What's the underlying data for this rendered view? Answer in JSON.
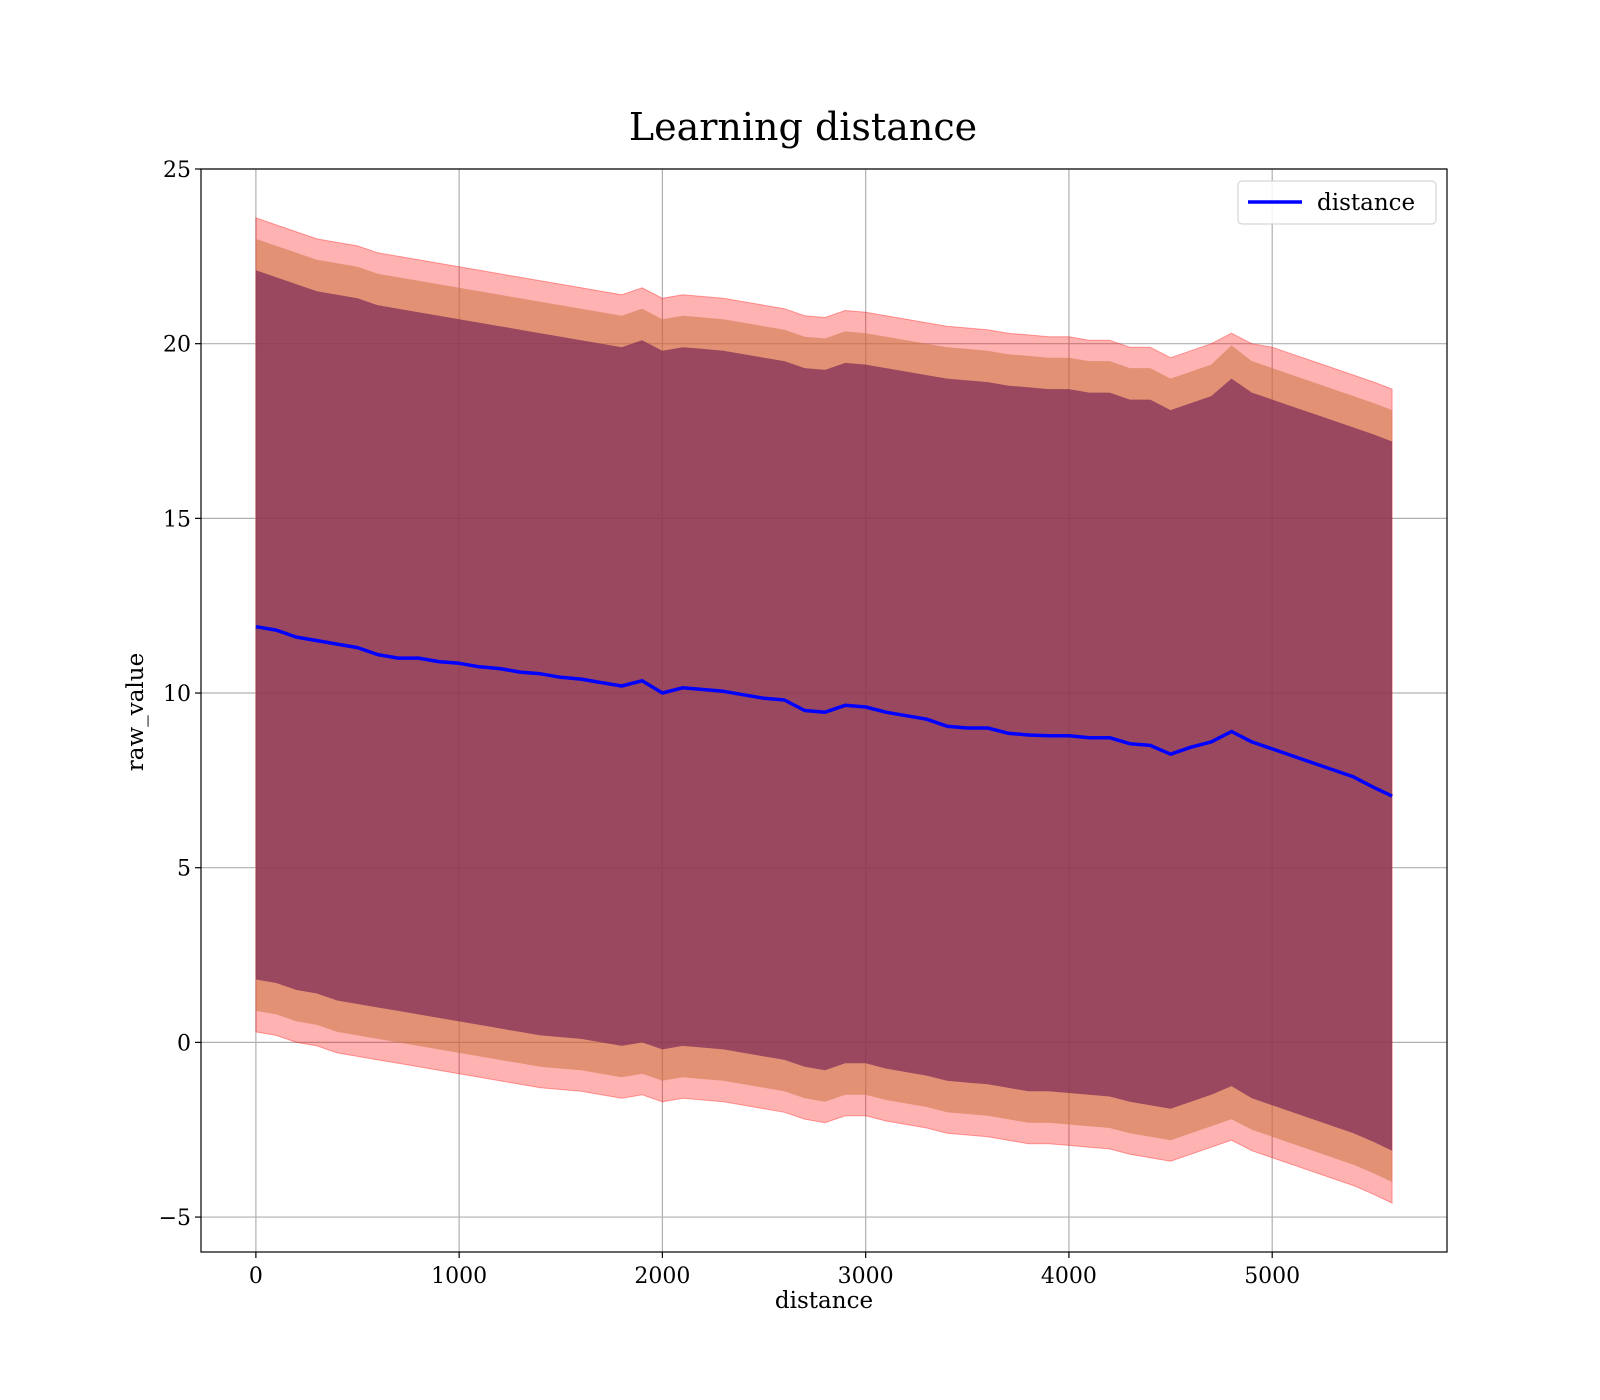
{
  "chart_data": {
    "type": "line",
    "title": "Learning distance",
    "xlabel": "distance",
    "ylabel": "raw_value",
    "xlim": [
      -270,
      5860
    ],
    "ylim": [
      -6,
      25
    ],
    "xticks": [
      0,
      1000,
      2000,
      3000,
      4000,
      5000
    ],
    "yticks": [
      -5,
      0,
      5,
      10,
      15,
      20,
      25
    ],
    "xtick_labels": [
      "0",
      "1000",
      "2000",
      "3000",
      "4000",
      "5000"
    ],
    "ytick_labels": [
      "−5",
      "0",
      "5",
      "10",
      "15",
      "20",
      "25"
    ],
    "grid": true,
    "legend": {
      "position": "top-right",
      "entries": [
        "distance"
      ]
    },
    "colors": {
      "line": "#0000ff",
      "band_outer": "#ff0000",
      "band_middle": "#cc7744",
      "band_inner": "#7a2a55"
    },
    "series": [
      {
        "name": "distance",
        "x": [
          0,
          100,
          200,
          300,
          400,
          500,
          600,
          700,
          800,
          900,
          1000,
          1100,
          1200,
          1300,
          1400,
          1500,
          1600,
          1700,
          1800,
          1900,
          2000,
          2100,
          2200,
          2300,
          2400,
          2500,
          2600,
          2700,
          2800,
          2900,
          3000,
          3100,
          3200,
          3300,
          3400,
          3500,
          3600,
          3700,
          3800,
          3900,
          4000,
          4100,
          4200,
          4300,
          4400,
          4500,
          4600,
          4700,
          4800,
          4900,
          5000,
          5100,
          5200,
          5300,
          5400,
          5500,
          5590
        ],
        "values": [
          11.9,
          11.8,
          11.6,
          11.5,
          11.4,
          11.3,
          11.1,
          11.0,
          11.0,
          10.9,
          10.85,
          10.75,
          10.7,
          10.6,
          10.55,
          10.45,
          10.4,
          10.3,
          10.2,
          10.35,
          10.0,
          10.15,
          10.1,
          10.05,
          9.95,
          9.85,
          9.8,
          9.5,
          9.45,
          9.65,
          9.6,
          9.45,
          9.35,
          9.25,
          9.05,
          9.0,
          9.0,
          8.85,
          8.8,
          8.78,
          8.78,
          8.72,
          8.72,
          8.55,
          8.5,
          8.25,
          8.45,
          8.6,
          8.9,
          8.6,
          8.4,
          8.2,
          8.0,
          7.8,
          7.6,
          7.3,
          7.05
        ],
        "band_outer": {
          "upper": [
            23.6,
            23.4,
            23.2,
            23.0,
            22.9,
            22.8,
            22.6,
            22.5,
            22.4,
            22.3,
            22.2,
            22.1,
            22.0,
            21.9,
            21.8,
            21.7,
            21.6,
            21.5,
            21.4,
            21.6,
            21.3,
            21.4,
            21.35,
            21.3,
            21.2,
            21.1,
            21.0,
            20.8,
            20.75,
            20.95,
            20.9,
            20.8,
            20.7,
            20.6,
            20.5,
            20.45,
            20.4,
            20.3,
            20.25,
            20.2,
            20.2,
            20.1,
            20.1,
            19.9,
            19.9,
            19.6,
            19.8,
            20.0,
            20.3,
            20.0,
            19.9,
            19.7,
            19.5,
            19.3,
            19.1,
            18.9,
            18.7
          ],
          "lower": [
            0.3,
            0.2,
            0.0,
            -0.1,
            -0.3,
            -0.4,
            -0.5,
            -0.6,
            -0.7,
            -0.8,
            -0.9,
            -1.0,
            -1.1,
            -1.2,
            -1.3,
            -1.35,
            -1.4,
            -1.5,
            -1.6,
            -1.5,
            -1.7,
            -1.6,
            -1.65,
            -1.7,
            -1.8,
            -1.9,
            -2.0,
            -2.2,
            -2.3,
            -2.1,
            -2.1,
            -2.25,
            -2.35,
            -2.45,
            -2.6,
            -2.65,
            -2.7,
            -2.8,
            -2.9,
            -2.9,
            -2.95,
            -3.0,
            -3.05,
            -3.2,
            -3.3,
            -3.4,
            -3.2,
            -3.0,
            -2.8,
            -3.1,
            -3.3,
            -3.5,
            -3.7,
            -3.9,
            -4.1,
            -4.35,
            -4.6
          ]
        },
        "band_middle": {
          "upper": [
            23.0,
            22.8,
            22.6,
            22.4,
            22.3,
            22.2,
            22.0,
            21.9,
            21.8,
            21.7,
            21.6,
            21.5,
            21.4,
            21.3,
            21.2,
            21.1,
            21.0,
            20.9,
            20.8,
            21.0,
            20.7,
            20.8,
            20.75,
            20.7,
            20.6,
            20.5,
            20.4,
            20.2,
            20.15,
            20.35,
            20.3,
            20.2,
            20.1,
            20.0,
            19.9,
            19.85,
            19.8,
            19.7,
            19.65,
            19.6,
            19.6,
            19.5,
            19.5,
            19.3,
            19.3,
            19.0,
            19.2,
            19.4,
            19.95,
            19.5,
            19.3,
            19.1,
            18.9,
            18.7,
            18.5,
            18.3,
            18.1
          ],
          "lower": [
            0.9,
            0.8,
            0.6,
            0.5,
            0.3,
            0.2,
            0.1,
            0.0,
            -0.1,
            -0.2,
            -0.3,
            -0.4,
            -0.5,
            -0.6,
            -0.7,
            -0.75,
            -0.8,
            -0.9,
            -1.0,
            -0.9,
            -1.1,
            -1.0,
            -1.05,
            -1.1,
            -1.2,
            -1.3,
            -1.4,
            -1.6,
            -1.7,
            -1.5,
            -1.5,
            -1.65,
            -1.75,
            -1.85,
            -2.0,
            -2.05,
            -2.1,
            -2.2,
            -2.3,
            -2.3,
            -2.35,
            -2.4,
            -2.45,
            -2.6,
            -2.7,
            -2.8,
            -2.6,
            -2.4,
            -2.2,
            -2.5,
            -2.7,
            -2.9,
            -3.1,
            -3.3,
            -3.5,
            -3.75,
            -4.0
          ]
        },
        "band_inner": {
          "upper": [
            22.1,
            21.9,
            21.7,
            21.5,
            21.4,
            21.3,
            21.1,
            21.0,
            20.9,
            20.8,
            20.7,
            20.6,
            20.5,
            20.4,
            20.3,
            20.2,
            20.1,
            20.0,
            19.9,
            20.1,
            19.8,
            19.9,
            19.85,
            19.8,
            19.7,
            19.6,
            19.5,
            19.3,
            19.25,
            19.45,
            19.4,
            19.3,
            19.2,
            19.1,
            19.0,
            18.95,
            18.9,
            18.8,
            18.75,
            18.7,
            18.7,
            18.6,
            18.6,
            18.4,
            18.4,
            18.1,
            18.3,
            18.5,
            19.0,
            18.6,
            18.4,
            18.2,
            18.0,
            17.8,
            17.6,
            17.4,
            17.2
          ],
          "lower": [
            1.8,
            1.7,
            1.5,
            1.4,
            1.2,
            1.1,
            1.0,
            0.9,
            0.8,
            0.7,
            0.6,
            0.5,
            0.4,
            0.3,
            0.2,
            0.15,
            0.1,
            0.0,
            -0.1,
            0.0,
            -0.2,
            -0.1,
            -0.15,
            -0.2,
            -0.3,
            -0.4,
            -0.5,
            -0.7,
            -0.8,
            -0.6,
            -0.6,
            -0.75,
            -0.85,
            -0.95,
            -1.1,
            -1.15,
            -1.2,
            -1.3,
            -1.4,
            -1.4,
            -1.45,
            -1.5,
            -1.55,
            -1.7,
            -1.8,
            -1.9,
            -1.7,
            -1.5,
            -1.25,
            -1.6,
            -1.8,
            -2.0,
            -2.2,
            -2.4,
            -2.6,
            -2.85,
            -3.1
          ]
        }
      }
    ]
  }
}
